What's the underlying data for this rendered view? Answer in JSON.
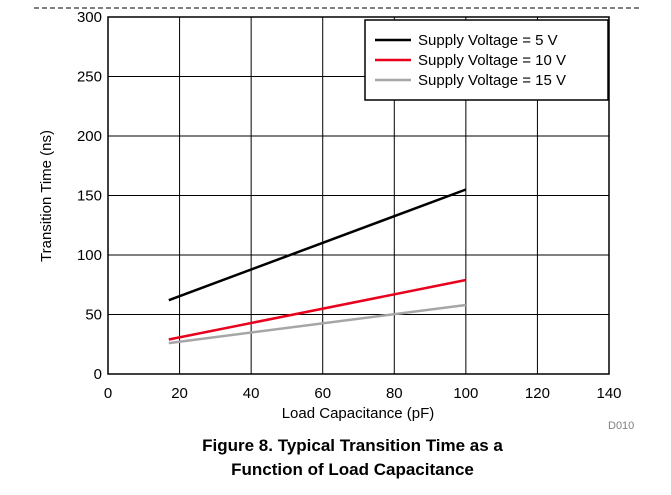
{
  "chart_data": {
    "type": "line",
    "title": "",
    "xlabel": "Load Capacitance (pF)",
    "ylabel": "Transition Time (ns)",
    "xlim": [
      0,
      140
    ],
    "ylim": [
      0,
      300
    ],
    "xticks": [
      0,
      20,
      40,
      60,
      80,
      100,
      120,
      140
    ],
    "yticks": [
      0,
      50,
      100,
      150,
      200,
      250,
      300
    ],
    "xtick_labels": [
      "0",
      "20",
      "40",
      "60",
      "80",
      "100",
      "120",
      "140"
    ],
    "ytick_labels": [
      "0",
      "50",
      "100",
      "150",
      "200",
      "250",
      "300"
    ],
    "grid": true,
    "legend_position": "top-right",
    "series": [
      {
        "name": "Supply Voltage = 5 V",
        "color": "#000000",
        "x": [
          17,
          100
        ],
        "y": [
          62,
          155
        ]
      },
      {
        "name": "Supply Voltage = 10 V",
        "color": "#e8001c",
        "x": [
          17,
          100
        ],
        "y": [
          29,
          79
        ]
      },
      {
        "name": "Supply Voltage = 15 V",
        "color": "#a6a6a6",
        "x": [
          17,
          100
        ],
        "y": [
          26,
          58
        ]
      }
    ]
  },
  "figure_code": "D010",
  "caption": {
    "line1": "Figure 8. Typical Transition Time as a",
    "line2": "Function of Load Capacitance"
  }
}
